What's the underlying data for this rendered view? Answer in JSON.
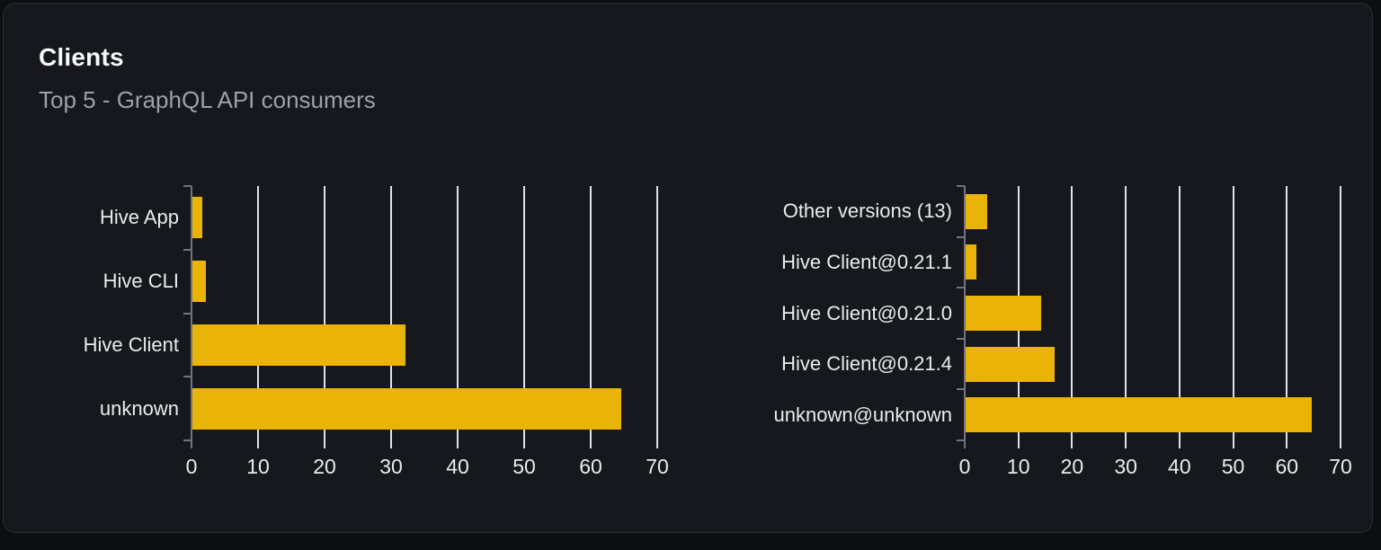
{
  "card": {
    "title": "Clients",
    "subtitle": "Top 5 - GraphQL API consumers"
  },
  "colors": {
    "page_background": "#0d0e11",
    "card_background": "#16181d",
    "card_border": "#2a2d34",
    "bar": "#eab308",
    "gridline": "#dde1e8",
    "axis": "#70757d",
    "tick_label": "#e9ebee",
    "title": "#f7f8f9",
    "subtitle": "#9aa1ab"
  },
  "chart_data": [
    {
      "type": "bar",
      "orientation": "horizontal",
      "name": "top-clients-by-name",
      "categories": [
        "Hive App",
        "Hive CLI",
        "Hive Client",
        "unknown"
      ],
      "values": [
        1.5,
        2,
        32,
        64.5
      ],
      "xlim": [
        0,
        70
      ],
      "xticks": [
        0,
        10,
        20,
        30,
        40,
        50,
        60,
        70
      ],
      "grid": true,
      "legend_position": "none",
      "bar_color": "#eab308"
    },
    {
      "type": "bar",
      "orientation": "horizontal",
      "name": "top-clients-by-version",
      "categories": [
        "Other versions (13)",
        "Hive Client@0.21.1",
        "Hive Client@0.21.0",
        "Hive Client@0.21.4",
        "unknown@unknown"
      ],
      "values": [
        4,
        2,
        14,
        16.5,
        64.5
      ],
      "xlim": [
        0,
        70
      ],
      "xticks": [
        0,
        10,
        20,
        30,
        40,
        50,
        60,
        70
      ],
      "grid": true,
      "legend_position": "none",
      "bar_color": "#eab308"
    }
  ]
}
